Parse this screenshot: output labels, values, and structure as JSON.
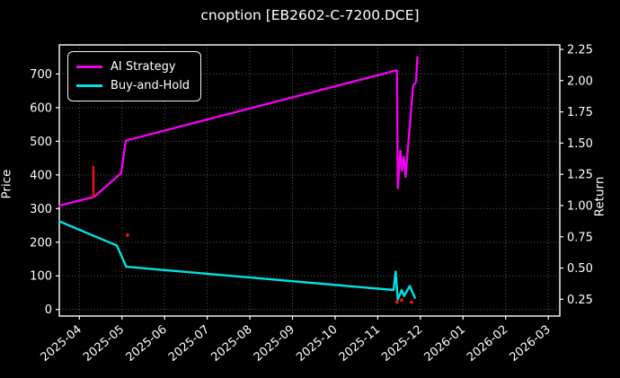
{
  "title": "cnoption [EB2602-C-7200.DCE]",
  "colors": {
    "background": "#000000",
    "text": "#ffffff",
    "spine": "#ffffff",
    "grid": "#5a5a5a",
    "ai_strategy": "#f000f0",
    "buy_and_hold": "#00e1e1",
    "trade_marker": "#e81010"
  },
  "chart_data": {
    "type": "line",
    "title": "cnoption [EB2602-C-7200.DCE]",
    "xlabel": "",
    "x_axis": {
      "tick_labels": [
        "2025-04",
        "2025-05",
        "2025-06",
        "2025-07",
        "2025-08",
        "2025-09",
        "2025-10",
        "2025-11",
        "2025-12",
        "2026-01",
        "2026-02",
        "2026-03"
      ],
      "xlim_months": [
        -0.47,
        11.27
      ],
      "tick_rotation_deg": -40
    },
    "left_axis": {
      "label": "Price",
      "ticks": [
        0,
        100,
        200,
        300,
        400,
        500,
        600,
        700
      ],
      "ylim": [
        -19.5,
        786.5
      ]
    },
    "right_axis": {
      "label": "Return",
      "ticks": [
        0.25,
        0.5,
        0.75,
        1.0,
        1.25,
        1.5,
        1.75,
        2.0,
        2.25
      ],
      "ylim": [
        0.116,
        2.286
      ]
    },
    "grid": true,
    "legend": {
      "position": "upper-left",
      "entries": [
        {
          "label": "AI Strategy",
          "color": "#f000f0"
        },
        {
          "label": "Buy-and-Hold",
          "color": "#00e1e1"
        }
      ]
    },
    "series": [
      {
        "name": "AI Strategy",
        "axis": "right",
        "color": "#f000f0",
        "x_months": [
          -0.47,
          0.35,
          0.98,
          1.09,
          7.41,
          7.45,
          7.47,
          7.53,
          7.57,
          7.61,
          7.65,
          7.83,
          7.9,
          7.93
        ],
        "values": [
          1.0,
          1.07,
          1.26,
          1.52,
          2.08,
          2.08,
          1.14,
          1.44,
          1.28,
          1.39,
          1.23,
          1.96,
          1.99,
          2.19
        ]
      },
      {
        "name": "Buy-and-Hold",
        "axis": "left",
        "color": "#00e1e1",
        "x_months": [
          -0.47,
          0.88,
          1.1,
          7.37,
          7.42,
          7.47,
          7.56,
          7.62,
          7.75,
          7.87
        ],
        "values": [
          262,
          190,
          127,
          58,
          113,
          30,
          58,
          40,
          70,
          35
        ]
      }
    ],
    "markers": {
      "color": "#e81010",
      "axis": "left",
      "items": [
        {
          "type": "vline",
          "x_month": 0.33,
          "from": 333,
          "to": 427
        },
        {
          "type": "dot",
          "x_month": 1.13,
          "value": 221
        },
        {
          "type": "dot",
          "x_month": 7.45,
          "value": 22
        },
        {
          "type": "dot",
          "x_month": 7.56,
          "value": 28
        },
        {
          "type": "dot",
          "x_month": 7.79,
          "value": 22
        }
      ]
    }
  }
}
